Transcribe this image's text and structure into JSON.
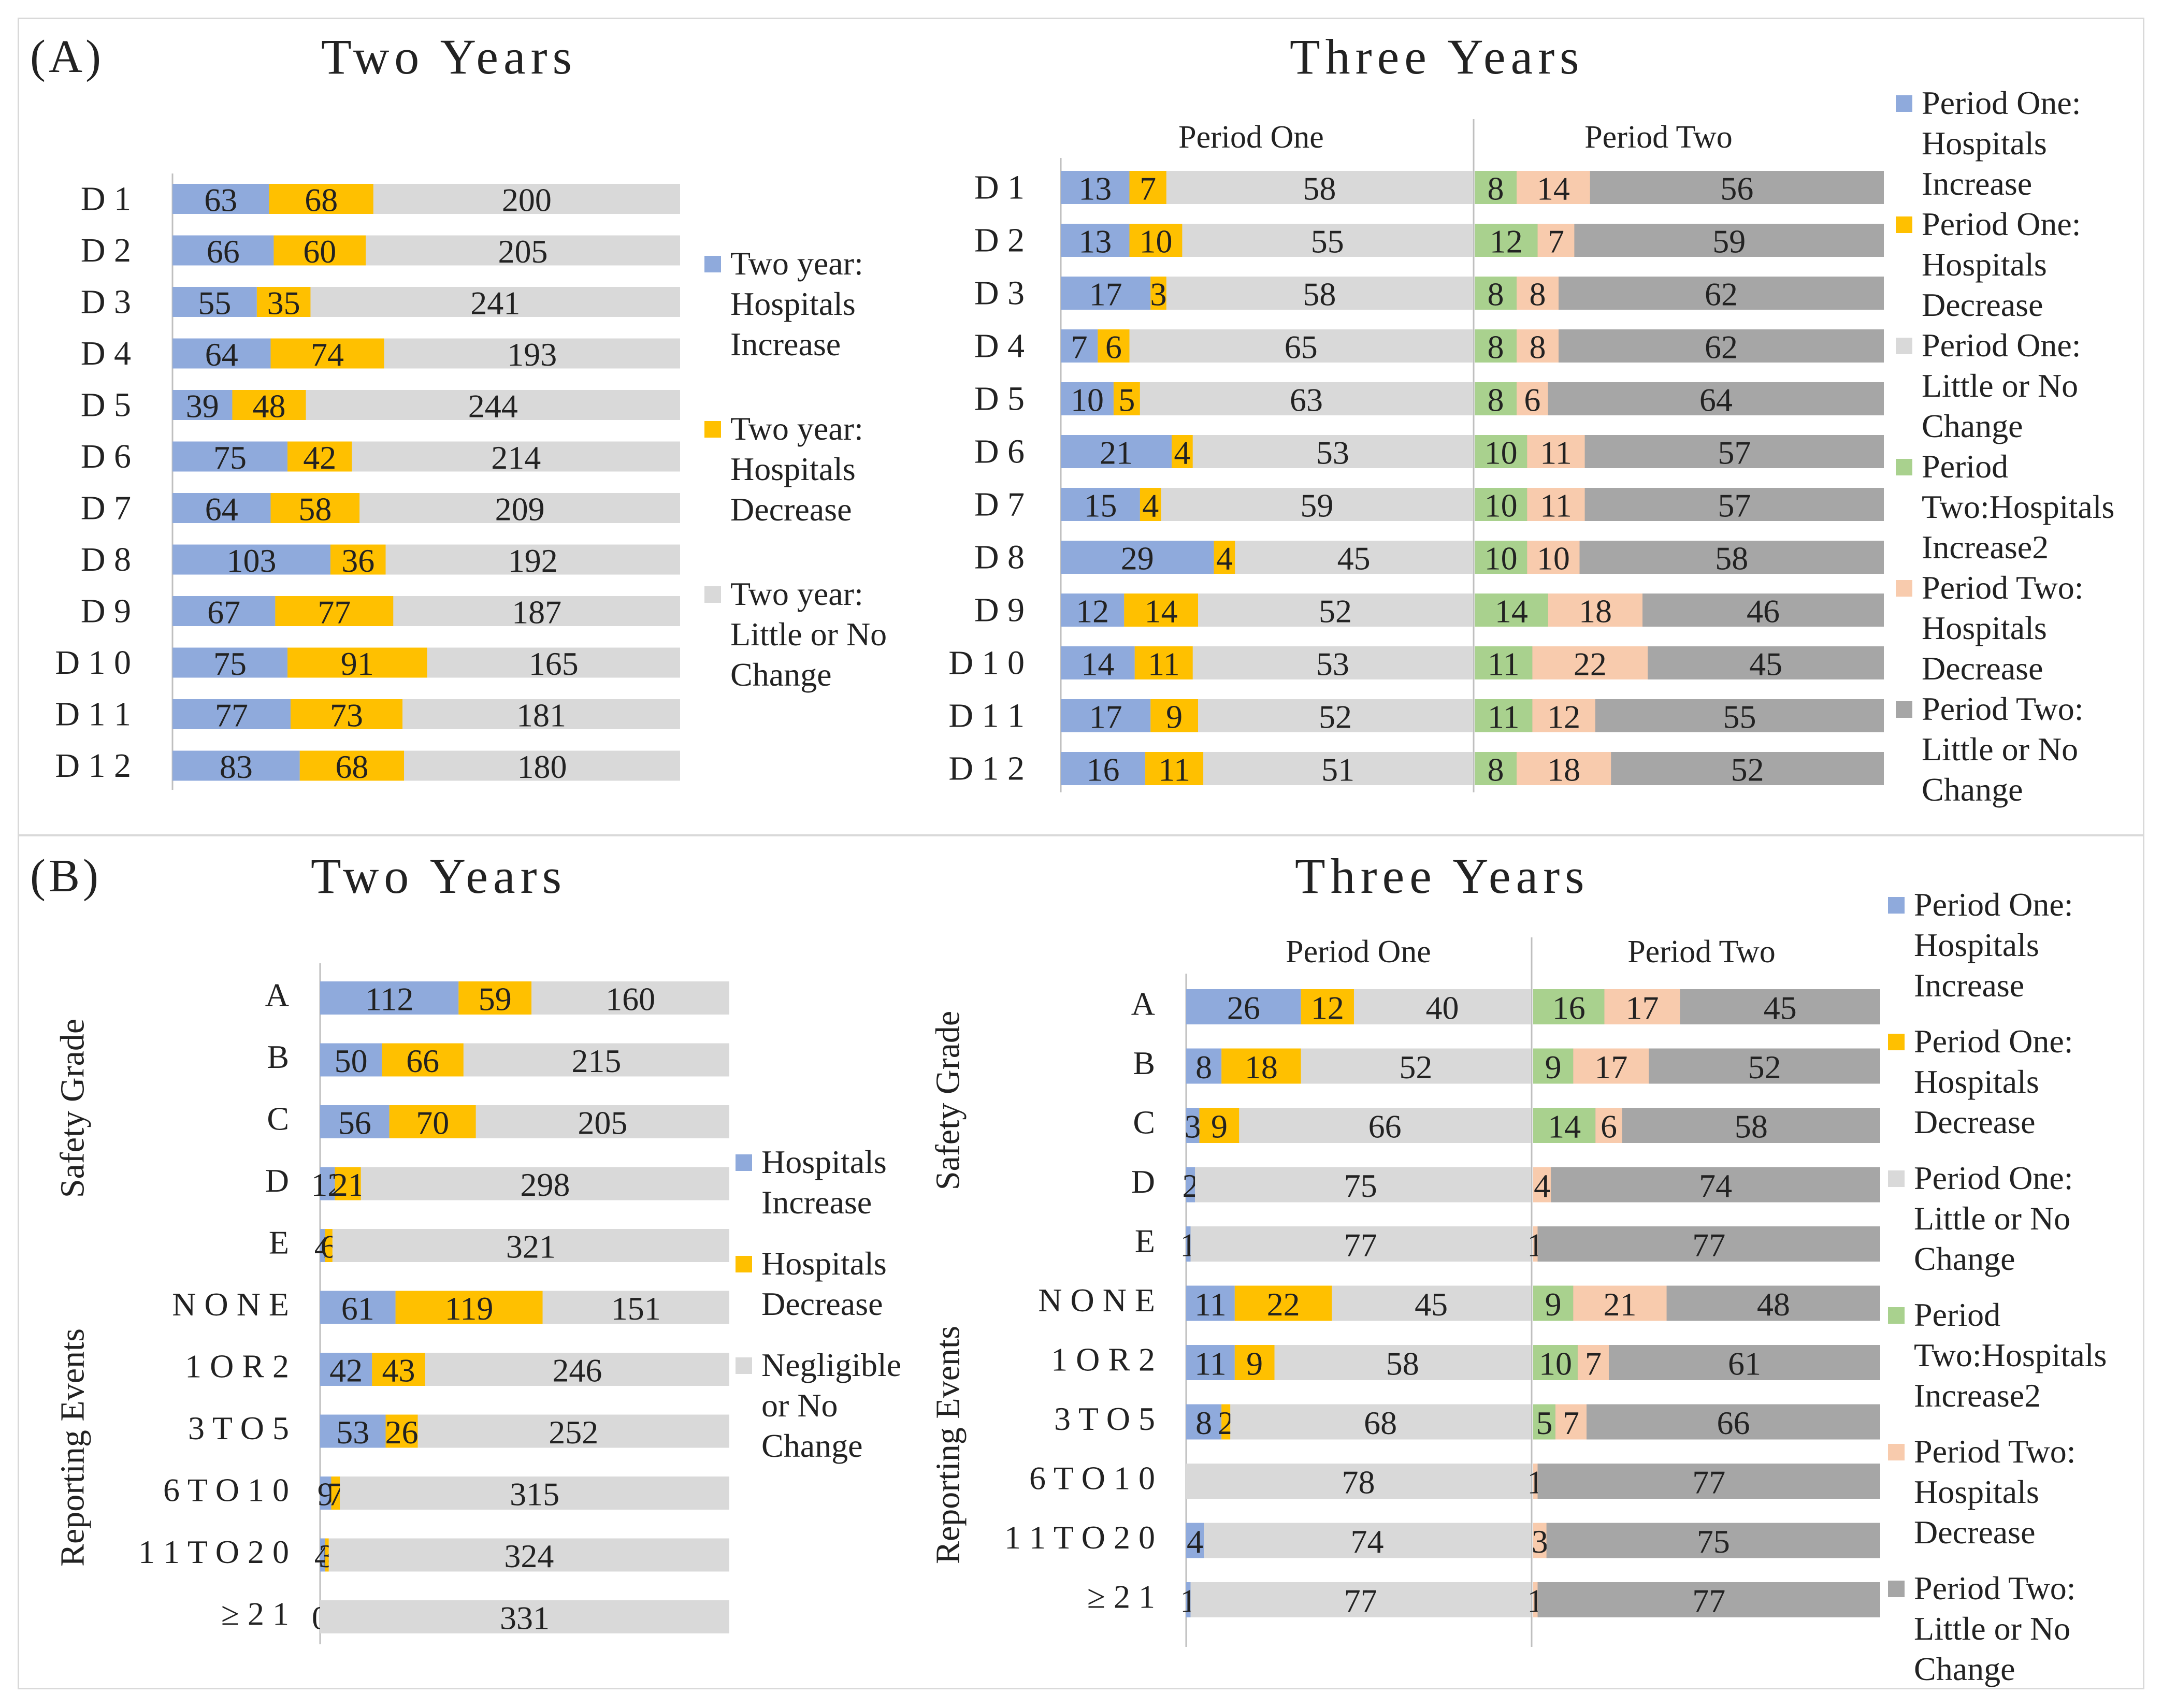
{
  "panels": [
    {
      "label": "(A)",
      "left_title": "Two Years",
      "right_title": "Three Years"
    },
    {
      "label": "(B)",
      "left_title": "Two Years",
      "right_title": "Three Years"
    }
  ],
  "colors": {
    "two_increase": "#8faadc",
    "two_decrease": "#ffc000",
    "two_nochange": "#d9d9d9",
    "p1_increase": "#8faadc",
    "p1_decrease": "#ffc000",
    "p1_nochange": "#d9d9d9",
    "p2_increase": "#a9d18e",
    "p2_decrease": "#f8cbad",
    "p2_nochange": "#a6a6a6"
  },
  "chart_data": [
    {
      "id": "A_two",
      "type": "bar",
      "orientation": "horizontal-stacked",
      "title": "Two Years",
      "categories": [
        "D1",
        "D2",
        "D3",
        "D4",
        "D5",
        "D6",
        "D7",
        "D8",
        "D9",
        "D10",
        "D11",
        "D12"
      ],
      "category_labels": [
        "D 1",
        "D 2",
        "D 3",
        "D 4",
        "D 5",
        "D 6",
        "D 7",
        "D 8",
        "D 9",
        "D 1 0",
        "D 1 1",
        "D 1 2"
      ],
      "series": [
        {
          "name": "Two year: Hospitals Increase",
          "values": [
            63,
            66,
            55,
            64,
            39,
            75,
            64,
            103,
            67,
            75,
            77,
            83
          ]
        },
        {
          "name": "Two year: Hospitals Decrease",
          "values": [
            68,
            60,
            35,
            74,
            48,
            42,
            58,
            36,
            77,
            91,
            73,
            68
          ]
        },
        {
          "name": "Two year: Little or No Change",
          "values": [
            200,
            205,
            241,
            193,
            244,
            214,
            209,
            192,
            187,
            165,
            181,
            180
          ]
        }
      ],
      "legend": [
        {
          "lines": [
            "Two year:",
            "Hospitals",
            "Increase"
          ],
          "color": "#8faadc"
        },
        {
          "lines": [
            "Two year:",
            "Hospitals",
            "Decrease"
          ],
          "color": "#ffc000"
        },
        {
          "lines": [
            "Two year:",
            "Little or No",
            "Change"
          ],
          "color": "#d9d9d9"
        }
      ]
    },
    {
      "id": "A_three",
      "type": "bar",
      "orientation": "horizontal-stacked",
      "title": "Three Years",
      "group_labels": [
        "Period One",
        "Period Two"
      ],
      "categories": [
        "D1",
        "D2",
        "D3",
        "D4",
        "D5",
        "D6",
        "D7",
        "D8",
        "D9",
        "D10",
        "D11",
        "D12"
      ],
      "category_labels": [
        "D 1",
        "D 2",
        "D 3",
        "D 4",
        "D 5",
        "D 6",
        "D 7",
        "D 8",
        "D 9",
        "D 1 0",
        "D 1 1",
        "D 1 2"
      ],
      "series": [
        {
          "name": "Period One: Hospitals Increase",
          "values": [
            13,
            13,
            17,
            7,
            10,
            21,
            15,
            29,
            12,
            14,
            17,
            16
          ]
        },
        {
          "name": "Period One: Hospitals Decrease",
          "values": [
            7,
            10,
            3,
            6,
            5,
            4,
            4,
            4,
            14,
            11,
            9,
            11
          ]
        },
        {
          "name": "Period One: Little or No Change",
          "values": [
            58,
            55,
            58,
            65,
            63,
            53,
            59,
            45,
            52,
            53,
            52,
            51
          ]
        },
        {
          "name": "Period Two:Hospitals Increase2",
          "values": [
            8,
            12,
            8,
            8,
            8,
            10,
            10,
            10,
            14,
            11,
            11,
            8
          ]
        },
        {
          "name": "Period Two: Hospitals Decrease",
          "values": [
            14,
            7,
            8,
            8,
            6,
            11,
            11,
            10,
            18,
            22,
            12,
            18
          ]
        },
        {
          "name": "Period Two: Little or No Change",
          "values": [
            56,
            59,
            62,
            62,
            64,
            57,
            57,
            58,
            46,
            45,
            55,
            52
          ]
        }
      ],
      "legend": [
        {
          "lines": [
            "Period One:",
            "Hospitals",
            "Increase"
          ],
          "color": "#8faadc"
        },
        {
          "lines": [
            "Period One:",
            "Hospitals",
            "Decrease"
          ],
          "color": "#ffc000"
        },
        {
          "lines": [
            "Period One:",
            "Little or No",
            "Change"
          ],
          "color": "#d9d9d9"
        },
        {
          "lines": [
            "Period",
            "Two:Hospitals",
            "Increase2"
          ],
          "color": "#a9d18e"
        },
        {
          "lines": [
            "Period Two:",
            "Hospitals",
            "Decrease"
          ],
          "color": "#f8cbad"
        },
        {
          "lines": [
            "Period Two:",
            "Little or No",
            "Change"
          ],
          "color": "#a6a6a6"
        }
      ]
    },
    {
      "id": "B_two",
      "type": "bar",
      "orientation": "horizontal-stacked",
      "title": "Two Years",
      "axis_groups": [
        "Safety Grade",
        "Reporting Events"
      ],
      "categories": [
        "A",
        "B",
        "C",
        "D",
        "E",
        "NONE",
        "1 OR 2",
        "3 TO 5",
        "6 TO 10",
        "11 TO 20",
        "≥21"
      ],
      "category_labels": [
        "A",
        "B",
        "C",
        "D",
        "E",
        "N O N E",
        "1  O R  2",
        "3  T O  5",
        "6  T O  1 0",
        "1 1  T O  2 0",
        "≥ 2 1"
      ],
      "series": [
        {
          "name": "Hospitals Increase",
          "values": [
            112,
            50,
            56,
            12,
            4,
            61,
            42,
            53,
            9,
            4,
            0
          ]
        },
        {
          "name": "Hospitals Decrease",
          "values": [
            59,
            66,
            70,
            21,
            6,
            119,
            43,
            26,
            7,
            3,
            0
          ]
        },
        {
          "name": "Negligible or No Change",
          "values": [
            160,
            215,
            205,
            298,
            321,
            151,
            246,
            252,
            315,
            324,
            331
          ]
        }
      ],
      "legend": [
        {
          "lines": [
            "Hospitals",
            "Increase"
          ],
          "color": "#8faadc"
        },
        {
          "lines": [
            "Hospitals",
            "Decrease"
          ],
          "color": "#ffc000"
        },
        {
          "lines": [
            "Negligible",
            "or No",
            "Change"
          ],
          "color": "#d9d9d9"
        }
      ]
    },
    {
      "id": "B_three",
      "type": "bar",
      "orientation": "horizontal-stacked",
      "title": "Three Years",
      "group_labels": [
        "Period One",
        "Period Two"
      ],
      "axis_groups": [
        "Safety Grade",
        "Reporting Events"
      ],
      "categories": [
        "A",
        "B",
        "C",
        "D",
        "E",
        "NONE",
        "1 OR 2",
        "3 TO 5",
        "6 TO 10",
        "11 TO 20",
        "≥21"
      ],
      "category_labels": [
        "A",
        "B",
        "C",
        "D",
        "E",
        "N O N E",
        "1  O R  2",
        "3  T O  5",
        "6  T O  1 0",
        "1 1  T O  2 0",
        "≥ 2 1"
      ],
      "series": [
        {
          "name": "Period One: Hospitals Increase",
          "values": [
            26,
            8,
            3,
            2,
            1,
            11,
            11,
            8,
            0,
            4,
            1
          ]
        },
        {
          "name": "Period One: Hospitals Decrease",
          "values": [
            12,
            18,
            9,
            0,
            0,
            22,
            9,
            2,
            0,
            0,
            0
          ]
        },
        {
          "name": "Period One: Little or No Change",
          "values": [
            40,
            52,
            66,
            75,
            77,
            45,
            58,
            68,
            78,
            74,
            77
          ]
        },
        {
          "name": "Period Two:Hospitals Increase2",
          "values": [
            16,
            9,
            14,
            0,
            0,
            9,
            10,
            5,
            0,
            0,
            0
          ]
        },
        {
          "name": "Period Two: Hospitals Decrease",
          "values": [
            17,
            17,
            6,
            4,
            1,
            21,
            7,
            7,
            1,
            3,
            1
          ]
        },
        {
          "name": "Period Two: Little or No Change",
          "values": [
            45,
            52,
            58,
            74,
            77,
            48,
            61,
            66,
            77,
            75,
            77
          ]
        }
      ],
      "legend": [
        {
          "lines": [
            "Period One:",
            "Hospitals",
            "Increase"
          ],
          "color": "#8faadc"
        },
        {
          "lines": [
            "Period One:",
            "Hospitals",
            "Decrease"
          ],
          "color": "#ffc000"
        },
        {
          "lines": [
            "Period One:",
            "Little or No",
            "Change"
          ],
          "color": "#d9d9d9"
        },
        {
          "lines": [
            "Period",
            "Two:Hospitals",
            "Increase2"
          ],
          "color": "#a9d18e"
        },
        {
          "lines": [
            "Period Two:",
            "Hospitals",
            "Decrease"
          ],
          "color": "#f8cbad"
        },
        {
          "lines": [
            "Period Two:",
            "Little or No",
            "Change"
          ],
          "color": "#a6a6a6"
        }
      ]
    }
  ]
}
